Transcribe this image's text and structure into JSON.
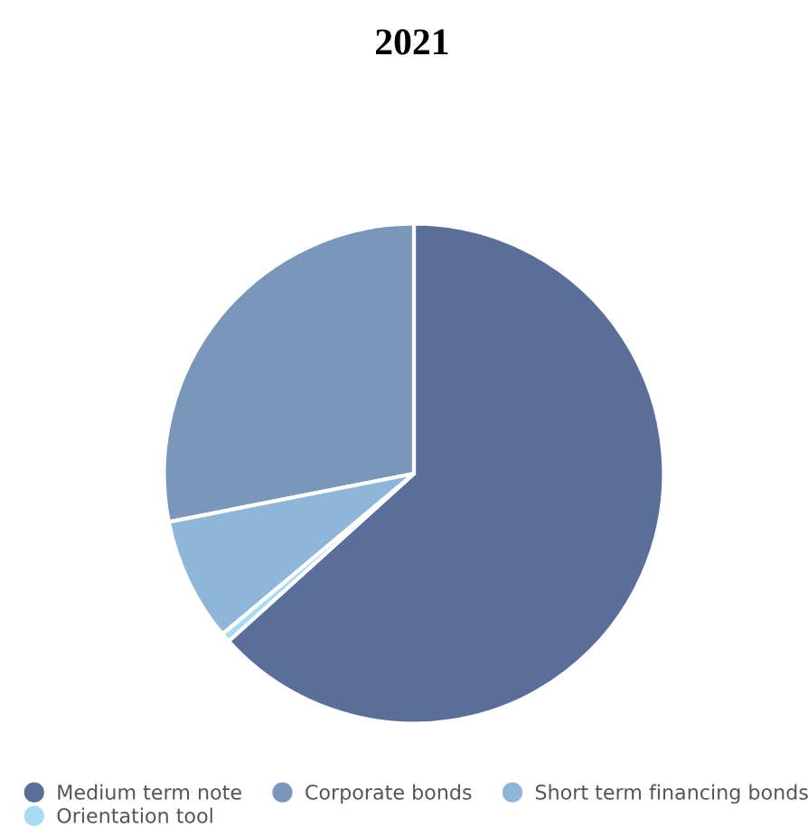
{
  "chart_data": {
    "type": "pie",
    "title": "2021",
    "categories": [
      "Medium term note",
      "Corporate bonds",
      "Short term financing bonds",
      "Orientation tool"
    ],
    "values": [
      63.3,
      28.1,
      8.0,
      0.6
    ],
    "colors": [
      "#5b6e99",
      "#7a96bb",
      "#8db6d9",
      "#a9dcf3"
    ],
    "legend": "bottom"
  }
}
